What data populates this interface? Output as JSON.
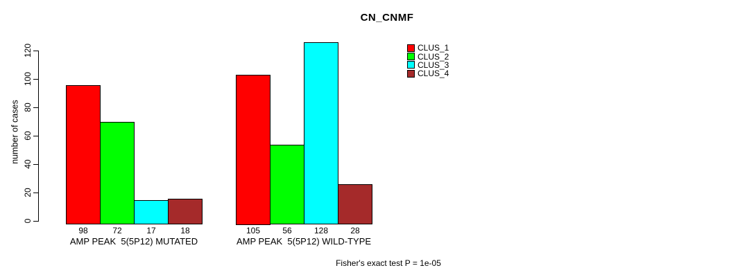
{
  "chart_data": {
    "type": "bar",
    "title": "CN_CNMF",
    "ylabel": "number of cases",
    "xlabel": "",
    "ylim": [
      0,
      130
    ],
    "yticks": [
      0,
      20,
      40,
      60,
      80,
      100,
      120
    ],
    "grid": false,
    "legend_position": "top-right",
    "categories": [
      "AMP PEAK  5(5P12) MUTATED",
      "AMP PEAK  5(5P12) WILD-TYPE"
    ],
    "series": [
      {
        "name": "CLUS_1",
        "color": "#ff0000",
        "values": [
          98,
          105
        ]
      },
      {
        "name": "CLUS_2",
        "color": "#00ff00",
        "values": [
          72,
          56
        ]
      },
      {
        "name": "CLUS_3",
        "color": "#00ffff",
        "values": [
          17,
          128
        ]
      },
      {
        "name": "CLUS_4",
        "color": "#a52a2a",
        "values": [
          18,
          28
        ]
      }
    ],
    "bar_value_labels_shown": true,
    "footnote": "Fisher's exact test P = 1e-05",
    "background_color": "#ffffff",
    "axis_color": "#000000"
  }
}
